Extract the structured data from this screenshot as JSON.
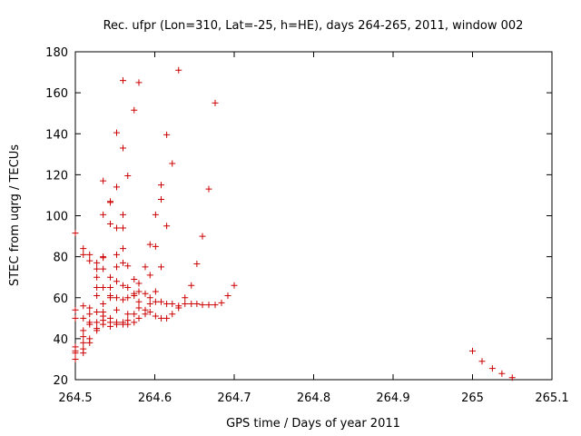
{
  "chart_data": {
    "type": "scatter",
    "title": "Rec. ufpr (Lon=310, Lat=-25, h=HE), days 264-265, 2011, window 002",
    "xlabel": "GPS time / Days of year 2011",
    "ylabel": "STEC from uqrg / TECUs",
    "xlim": [
      264.5,
      265.1
    ],
    "ylim": [
      20,
      180
    ],
    "xticks": [
      "264.5",
      "264.6",
      "264.7",
      "264.8",
      "264.9",
      "265",
      "265.1"
    ],
    "yticks": [
      "20",
      "40",
      "60",
      "80",
      "100",
      "120",
      "140",
      "160",
      "180"
    ],
    "xtick_values": [
      264.5,
      264.6,
      264.7,
      264.8,
      264.9,
      265.0,
      265.1
    ],
    "ytick_values": [
      20,
      40,
      60,
      80,
      100,
      120,
      140,
      160,
      180
    ],
    "grid": false,
    "marker": "plus",
    "series": [
      {
        "color": "#cc0000",
        "points": [
          [
            264.5,
            91.5
          ],
          [
            264.5,
            54
          ],
          [
            264.5,
            50
          ],
          [
            264.5,
            36
          ],
          [
            264.5,
            34
          ],
          [
            264.5,
            33
          ],
          [
            264.5,
            30
          ],
          [
            264.51,
            84
          ],
          [
            264.51,
            81
          ],
          [
            264.51,
            56
          ],
          [
            264.51,
            50
          ],
          [
            264.51,
            44
          ],
          [
            264.51,
            41
          ],
          [
            264.51,
            38
          ],
          [
            264.51,
            35
          ],
          [
            264.51,
            33
          ],
          [
            264.518,
            81
          ],
          [
            264.518,
            78
          ],
          [
            264.518,
            55
          ],
          [
            264.518,
            52
          ],
          [
            264.518,
            48
          ],
          [
            264.518,
            47
          ],
          [
            264.518,
            40
          ],
          [
            264.518,
            38
          ],
          [
            264.527,
            77
          ],
          [
            264.527,
            74
          ],
          [
            264.527,
            70
          ],
          [
            264.527,
            65
          ],
          [
            264.527,
            61
          ],
          [
            264.527,
            53
          ],
          [
            264.527,
            48
          ],
          [
            264.527,
            45
          ],
          [
            264.527,
            44
          ],
          [
            264.535,
            117
          ],
          [
            264.535,
            100.5
          ],
          [
            264.535,
            80
          ],
          [
            264.535,
            79.5
          ],
          [
            264.535,
            74
          ],
          [
            264.535,
            65
          ],
          [
            264.535,
            57
          ],
          [
            264.535,
            53
          ],
          [
            264.535,
            51
          ],
          [
            264.535,
            49
          ],
          [
            264.535,
            47
          ],
          [
            264.544,
            107
          ],
          [
            264.544,
            106.5
          ],
          [
            264.544,
            96
          ],
          [
            264.544,
            70
          ],
          [
            264.544,
            65
          ],
          [
            264.544,
            61
          ],
          [
            264.544,
            60
          ],
          [
            264.544,
            50
          ],
          [
            264.544,
            48
          ],
          [
            264.544,
            46
          ],
          [
            264.552,
            140.5
          ],
          [
            264.552,
            114
          ],
          [
            264.552,
            94
          ],
          [
            264.552,
            81
          ],
          [
            264.552,
            75
          ],
          [
            264.552,
            68
          ],
          [
            264.552,
            60
          ],
          [
            264.552,
            54
          ],
          [
            264.552,
            48
          ],
          [
            264.552,
            47
          ],
          [
            264.56,
            166
          ],
          [
            264.56,
            133
          ],
          [
            264.56,
            100.5
          ],
          [
            264.56,
            94
          ],
          [
            264.56,
            84
          ],
          [
            264.56,
            77
          ],
          [
            264.56,
            66
          ],
          [
            264.56,
            59
          ],
          [
            264.56,
            48
          ],
          [
            264.56,
            47
          ],
          [
            264.566,
            119.5
          ],
          [
            264.566,
            75.5
          ],
          [
            264.566,
            65
          ],
          [
            264.566,
            60
          ],
          [
            264.566,
            52
          ],
          [
            264.566,
            49
          ],
          [
            264.566,
            47
          ],
          [
            264.574,
            151.5
          ],
          [
            264.574,
            69
          ],
          [
            264.574,
            62
          ],
          [
            264.574,
            61
          ],
          [
            264.574,
            52
          ],
          [
            264.574,
            48
          ],
          [
            264.58,
            165
          ],
          [
            264.58,
            67
          ],
          [
            264.58,
            63
          ],
          [
            264.58,
            58
          ],
          [
            264.58,
            55
          ],
          [
            264.58,
            50
          ],
          [
            264.588,
            75
          ],
          [
            264.588,
            62
          ],
          [
            264.588,
            54
          ],
          [
            264.588,
            52
          ],
          [
            264.594,
            86
          ],
          [
            264.594,
            71
          ],
          [
            264.594,
            60
          ],
          [
            264.594,
            57
          ],
          [
            264.594,
            53
          ],
          [
            264.601,
            100.5
          ],
          [
            264.601,
            85
          ],
          [
            264.601,
            63
          ],
          [
            264.601,
            58
          ],
          [
            264.601,
            51
          ],
          [
            264.608,
            115
          ],
          [
            264.608,
            108
          ],
          [
            264.608,
            75
          ],
          [
            264.608,
            58
          ],
          [
            264.608,
            50
          ],
          [
            264.615,
            139.5
          ],
          [
            264.615,
            95
          ],
          [
            264.615,
            57
          ],
          [
            264.615,
            50
          ],
          [
            264.622,
            125.5
          ],
          [
            264.622,
            57
          ],
          [
            264.622,
            52
          ],
          [
            264.63,
            171
          ],
          [
            264.63,
            56
          ],
          [
            264.63,
            55
          ],
          [
            264.638,
            60
          ],
          [
            264.638,
            57
          ],
          [
            264.646,
            66
          ],
          [
            264.646,
            57
          ],
          [
            264.653,
            76.5
          ],
          [
            264.653,
            57
          ],
          [
            264.66,
            90
          ],
          [
            264.66,
            56.5
          ],
          [
            264.668,
            113
          ],
          [
            264.668,
            56.5
          ],
          [
            264.676,
            155
          ],
          [
            264.676,
            56.5
          ],
          [
            264.684,
            57.5
          ],
          [
            264.692,
            61
          ],
          [
            264.7,
            66
          ],
          [
            265.0,
            34
          ],
          [
            265.012,
            29
          ],
          [
            265.025,
            25.5
          ],
          [
            265.037,
            23
          ],
          [
            265.05,
            21
          ]
        ]
      }
    ]
  }
}
